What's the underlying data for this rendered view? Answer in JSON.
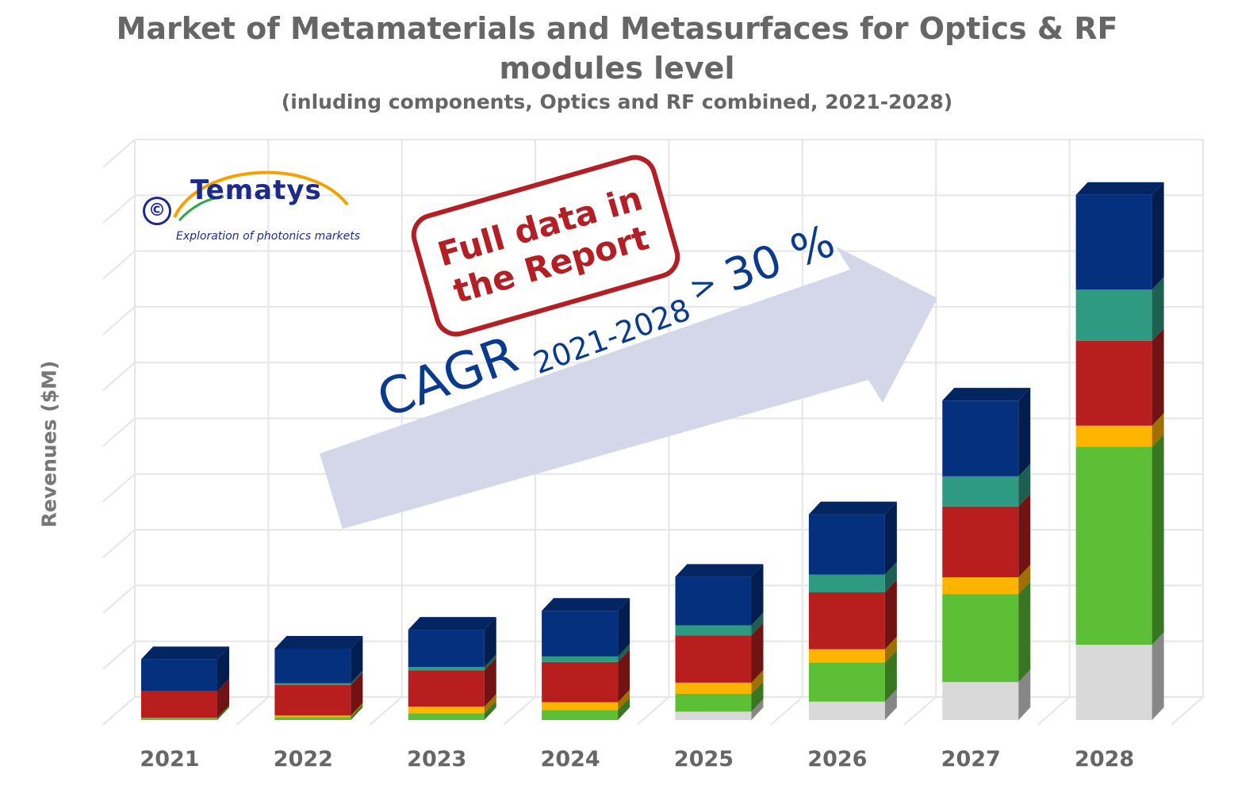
{
  "chart_data": {
    "type": "bar",
    "stacked": true,
    "title": "Market of Metamaterials and Metasurfaces for Optics & RF modules level",
    "title_lines": [
      "Market of Metamaterials and Metasurfaces for Optics & RF",
      "modules level"
    ],
    "subtitle": "(inluding components, Optics and RF combined, 2021-2028)",
    "xlabel": "",
    "ylabel": "Revenues ($M)",
    "ylim": [
      0,
      10
    ],
    "grid": true,
    "legend": "none",
    "categories": [
      "2021",
      "2022",
      "2023",
      "2024",
      "2025",
      "2026",
      "2027",
      "2028"
    ],
    "series": [
      {
        "color": "#d9d9d9",
        "values": [
          0.0,
          0.0,
          0.0,
          0.0,
          0.15,
          0.33,
          0.68,
          1.35
        ]
      },
      {
        "color": "#5cbf36",
        "values": [
          0.04,
          0.05,
          0.12,
          0.18,
          0.32,
          0.7,
          1.58,
          3.55
        ]
      },
      {
        "color": "#ffb400",
        "values": [
          0.0,
          0.03,
          0.12,
          0.14,
          0.2,
          0.24,
          0.3,
          0.38
        ]
      },
      {
        "color": "#b81e1e",
        "values": [
          0.48,
          0.55,
          0.65,
          0.72,
          0.85,
          1.02,
          1.27,
          1.52
        ]
      },
      {
        "color": "#2e9a82",
        "values": [
          0.0,
          0.03,
          0.06,
          0.1,
          0.18,
          0.32,
          0.54,
          0.92
        ]
      },
      {
        "color": "#04307e",
        "values": [
          0.57,
          0.62,
          0.67,
          0.82,
          0.87,
          1.08,
          1.36,
          1.7
        ]
      }
    ],
    "annotations": {
      "stamp_lines": [
        "Full data in",
        "the Report"
      ],
      "cagr_main": "CAGR",
      "cagr_period": "2021-2028",
      "cagr_gt": ">",
      "cagr_value": "30 %"
    }
  },
  "logo": {
    "copyright": "©",
    "name": "Tematys",
    "tagline": "Exploration of photonics markets"
  },
  "colors": {
    "grid": "#e6e6e6",
    "axis_text": "#666666",
    "arrow": "#d4d6ea",
    "stamp": "#b22025",
    "cagr_text": "#0a3a8c"
  }
}
